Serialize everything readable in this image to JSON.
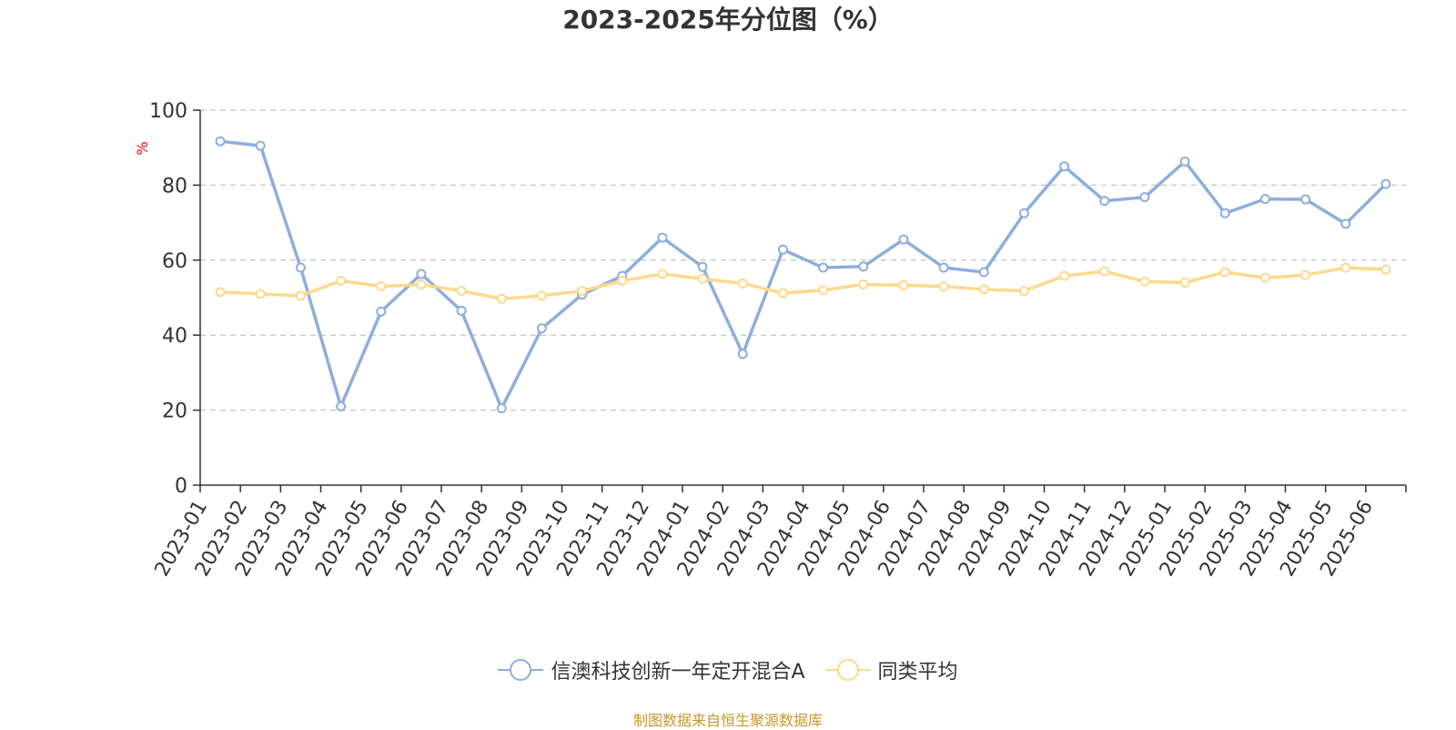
{
  "chart_data": {
    "type": "line",
    "title": "2023-2025年分位图（%）",
    "ylabel": "%",
    "xlabel": "",
    "ylim": [
      0,
      100
    ],
    "yticks": [
      0,
      20,
      40,
      60,
      80,
      100
    ],
    "grid": true,
    "legend_position": "bottom",
    "categories": [
      "2023-01",
      "2023-02",
      "2023-03",
      "2023-04",
      "2023-05",
      "2023-06",
      "2023-07",
      "2023-08",
      "2023-09",
      "2023-10",
      "2023-11",
      "2023-12",
      "2024-01",
      "2024-02",
      "2024-03",
      "2024-04",
      "2024-05",
      "2024-06",
      "2024-07",
      "2024-08",
      "2024-09",
      "2024-10",
      "2024-11",
      "2024-12",
      "2025-01",
      "2025-02",
      "2025-03",
      "2025-04",
      "2025-05",
      "2025-06"
    ],
    "series": [
      {
        "name": "信澳科技创新一年定开混合A",
        "color": "#8eaedb",
        "values": [
          91.7,
          90.5,
          58.0,
          21.0,
          46.3,
          56.3,
          46.5,
          20.5,
          41.8,
          50.8,
          55.8,
          66.0,
          58.2,
          35.0,
          62.8,
          58.0,
          58.3,
          65.5,
          58.0,
          56.8,
          72.5,
          85.0,
          75.8,
          76.8,
          86.3,
          72.5,
          76.3,
          76.2,
          69.7,
          80.3
        ]
      },
      {
        "name": "同类平均",
        "color": "#fdd98d",
        "values": [
          51.5,
          51.0,
          50.5,
          54.5,
          53.0,
          53.5,
          51.8,
          49.7,
          50.5,
          51.8,
          54.5,
          56.3,
          55.0,
          53.8,
          51.2,
          52.0,
          53.5,
          53.3,
          53.0,
          52.2,
          51.8,
          55.8,
          57.0,
          54.3,
          54.0,
          56.8,
          55.3,
          56.0,
          58.0,
          57.5
        ]
      }
    ]
  },
  "source_text": "制图数据来自恒生聚源数据库",
  "colors": {
    "axis": "#333333",
    "grid": "#cccccc",
    "ylabel": "#ff0000",
    "source": "#c8962a"
  }
}
